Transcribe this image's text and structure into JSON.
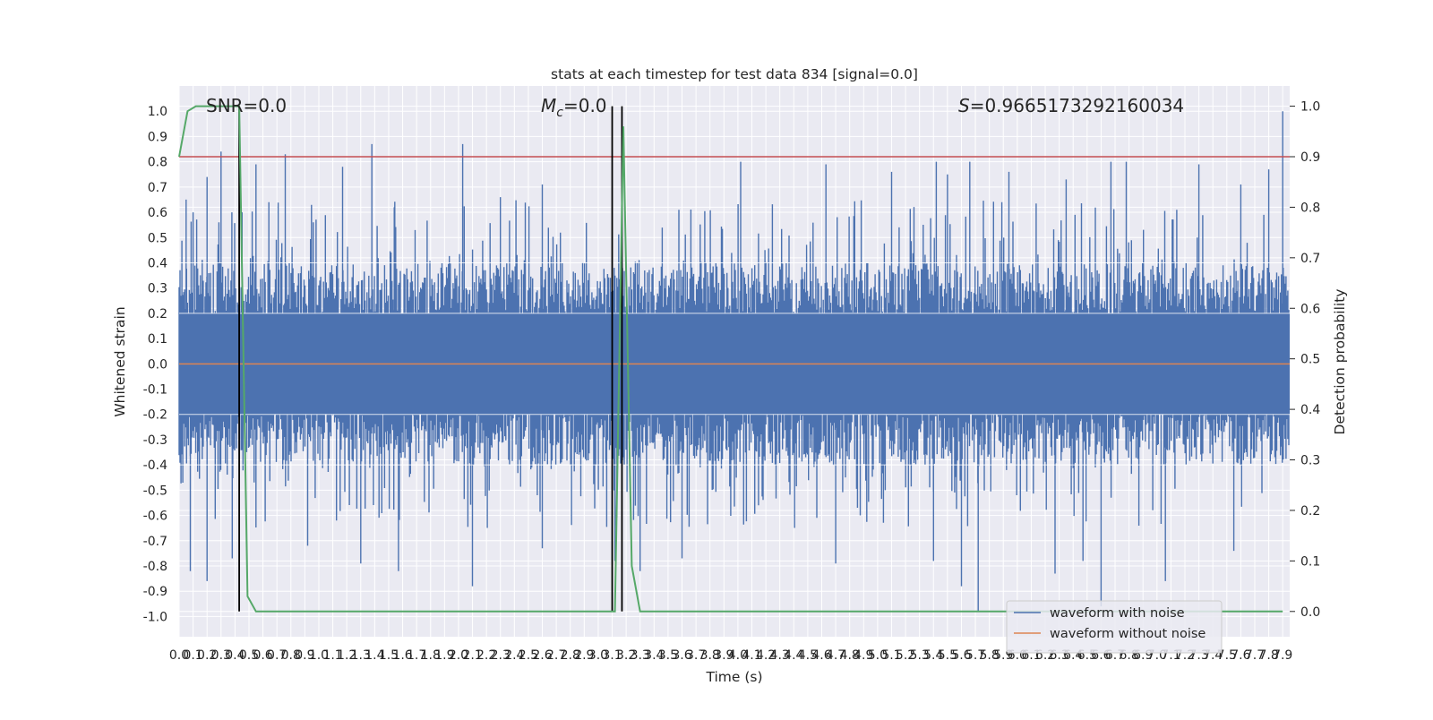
{
  "chart_data": {
    "type": "line",
    "title": "stats at each timestep for test data 834 [signal=0.0]",
    "xlabel": "Time (s)",
    "ylabel": "Whitened strain",
    "y2label": "Detection probability",
    "xlim": [
      0.0,
      7.95
    ],
    "ylim": [
      -1.08,
      1.1
    ],
    "y2lim": [
      -0.05,
      1.04
    ],
    "x_tick_step": 0.1,
    "x_tick_max": 7.9,
    "y_ticks": [
      -1.0,
      -0.9,
      -0.8,
      -0.7,
      -0.6,
      -0.5,
      -0.4,
      -0.3,
      -0.2,
      -0.1,
      0.0,
      0.1,
      0.2,
      0.3,
      0.4,
      0.5,
      0.6,
      0.7,
      0.8,
      0.9,
      1.0
    ],
    "y2_ticks": [
      0.0,
      0.1,
      0.2,
      0.3,
      0.4,
      0.5,
      0.6,
      0.7,
      0.8,
      0.9,
      1.0
    ],
    "grid": true,
    "legend_position": "lower-right",
    "annotations": {
      "snr": "SNR=0.0",
      "mc_symbol": "M",
      "mc_sub": "c",
      "mc_value": "=0.0",
      "s_symbol": "S",
      "s_value": "=0.9665173292160034"
    },
    "series": [
      {
        "name": "waveform with noise",
        "color": "#4c72b0",
        "kind": "noise",
        "positive_peaks": [
          [
            0.05,
            0.65
          ],
          [
            0.1,
            0.6
          ],
          [
            0.2,
            0.74
          ],
          [
            0.3,
            0.84
          ],
          [
            0.55,
            0.79
          ],
          [
            0.76,
            0.83
          ],
          [
            1.17,
            0.78
          ],
          [
            1.38,
            0.87
          ],
          [
            1.54,
            0.62
          ],
          [
            2.03,
            0.87
          ],
          [
            2.3,
            0.66
          ],
          [
            2.6,
            0.71
          ],
          [
            3.17,
            0.59
          ],
          [
            4.02,
            0.8
          ],
          [
            4.02,
            0.8
          ],
          [
            4.63,
            0.79
          ],
          [
            5.1,
            0.76
          ],
          [
            5.42,
            0.8
          ],
          [
            5.5,
            0.75
          ],
          [
            5.66,
            0.8
          ],
          [
            5.94,
            0.76
          ],
          [
            6.35,
            0.73
          ],
          [
            6.67,
            0.8
          ],
          [
            6.78,
            0.8
          ],
          [
            7.3,
            0.79
          ],
          [
            7.6,
            0.71
          ],
          [
            7.8,
            0.77
          ],
          [
            7.9,
            1.0
          ]
        ],
        "negative_peaks": [
          [
            0.08,
            -0.82
          ],
          [
            0.2,
            -0.86
          ],
          [
            0.38,
            -0.77
          ],
          [
            0.92,
            -0.72
          ],
          [
            1.3,
            -0.79
          ],
          [
            1.57,
            -0.82
          ],
          [
            2.1,
            -0.88
          ],
          [
            2.6,
            -0.73
          ],
          [
            3.12,
            -0.78
          ],
          [
            3.3,
            -0.82
          ],
          [
            3.6,
            -0.77
          ],
          [
            4.7,
            -0.79
          ],
          [
            5.4,
            -0.78
          ],
          [
            5.6,
            -0.88
          ],
          [
            5.72,
            -0.98
          ],
          [
            6.27,
            -0.83
          ],
          [
            6.47,
            -0.78
          ],
          [
            6.6,
            -0.96
          ],
          [
            7.06,
            -0.86
          ],
          [
            7.55,
            -0.74
          ]
        ],
        "gap_markers": [
          [
            5.7,
            0.19
          ]
        ]
      },
      {
        "name": "waveform without noise",
        "color": "#dd8452",
        "x": [
          0.0,
          7.95
        ],
        "y": [
          0.0,
          0.0
        ]
      },
      {
        "name": "detection probability",
        "color": "#55a868",
        "axis": "right",
        "x": [
          0.0,
          0.06,
          0.12,
          0.17,
          0.24,
          0.3,
          0.37,
          0.43,
          0.49,
          0.55,
          0.61,
          3.0,
          3.05,
          3.12,
          3.18,
          3.24,
          3.3,
          3.36,
          7.9
        ],
        "y": [
          0.9,
          0.99,
          1.0,
          1.0,
          1.0,
          1.0,
          1.0,
          1.0,
          0.03,
          0.0,
          0.0,
          0.0,
          0.0,
          0.0,
          0.96,
          0.09,
          0.0,
          0.0,
          0.0
        ]
      }
    ],
    "threshold": {
      "value": 0.9,
      "axis": "right",
      "color": "#c44e52"
    },
    "vertical_markers": [
      0.43,
      3.1,
      3.17
    ],
    "marker_color": "#000000"
  }
}
